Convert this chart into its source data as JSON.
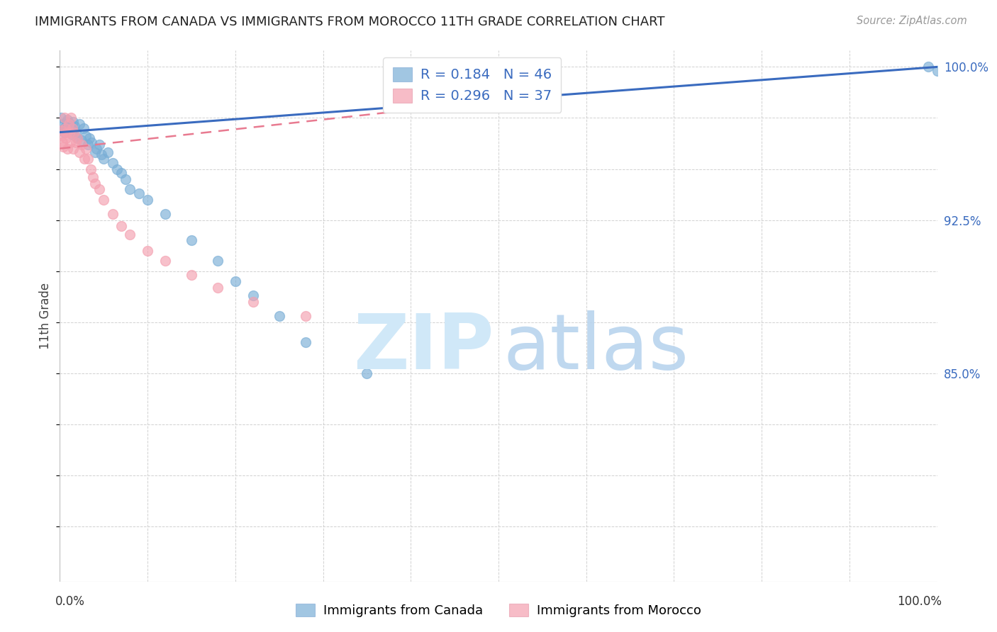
{
  "title": "IMMIGRANTS FROM CANADA VS IMMIGRANTS FROM MOROCCO 11TH GRADE CORRELATION CHART",
  "source": "Source: ZipAtlas.com",
  "ylabel": "11th Grade",
  "background_color": "#ffffff",
  "canada_color": "#7aaed6",
  "morocco_color": "#f4a0b0",
  "canada_line_color": "#3a6bbf",
  "morocco_line_color": "#e87a90",
  "canada_R": 0.184,
  "canada_N": 46,
  "morocco_R": 0.296,
  "morocco_N": 37,
  "legend_color": "#3a6bbf",
  "watermark_zip_color": "#d0e8f8",
  "watermark_atlas_color": "#b8d4ee",
  "grid_color": "#cccccc",
  "xlim": [
    0.0,
    1.0
  ],
  "ylim": [
    0.748,
    1.008
  ],
  "ytick_vals": [
    0.775,
    0.8,
    0.825,
    0.85,
    0.875,
    0.9,
    0.925,
    0.95,
    0.975,
    1.0
  ],
  "ytick_labels_right": [
    "",
    "",
    "",
    "85.0%",
    "",
    "",
    "92.5%",
    "",
    "",
    "100.0%"
  ],
  "canada_x": [
    0.001,
    0.003,
    0.005,
    0.005,
    0.007,
    0.008,
    0.009,
    0.01,
    0.012,
    0.013,
    0.014,
    0.015,
    0.016,
    0.017,
    0.018,
    0.02,
    0.022,
    0.025,
    0.027,
    0.03,
    0.032,
    0.034,
    0.036,
    0.04,
    0.042,
    0.045,
    0.047,
    0.05,
    0.055,
    0.06,
    0.065,
    0.07,
    0.075,
    0.08,
    0.09,
    0.1,
    0.12,
    0.15,
    0.18,
    0.2,
    0.22,
    0.25,
    0.28,
    0.35,
    0.99,
    1.0
  ],
  "canada_y": [
    0.975,
    0.972,
    0.97,
    0.968,
    0.971,
    0.973,
    0.974,
    0.969,
    0.972,
    0.97,
    0.967,
    0.973,
    0.969,
    0.971,
    0.968,
    0.965,
    0.972,
    0.964,
    0.97,
    0.966,
    0.962,
    0.965,
    0.963,
    0.958,
    0.96,
    0.962,
    0.957,
    0.955,
    0.958,
    0.953,
    0.95,
    0.948,
    0.945,
    0.94,
    0.938,
    0.935,
    0.928,
    0.915,
    0.905,
    0.895,
    0.888,
    0.878,
    0.865,
    0.85,
    1.0,
    0.998
  ],
  "morocco_x": [
    0.001,
    0.002,
    0.003,
    0.004,
    0.005,
    0.006,
    0.007,
    0.008,
    0.009,
    0.01,
    0.011,
    0.012,
    0.013,
    0.014,
    0.015,
    0.016,
    0.018,
    0.02,
    0.022,
    0.025,
    0.028,
    0.03,
    0.032,
    0.035,
    0.038,
    0.04,
    0.045,
    0.05,
    0.06,
    0.07,
    0.08,
    0.1,
    0.12,
    0.15,
    0.18,
    0.22,
    0.28
  ],
  "morocco_y": [
    0.969,
    0.966,
    0.963,
    0.961,
    0.975,
    0.97,
    0.965,
    0.968,
    0.96,
    0.972,
    0.968,
    0.963,
    0.975,
    0.97,
    0.96,
    0.968,
    0.963,
    0.965,
    0.958,
    0.962,
    0.955,
    0.96,
    0.955,
    0.95,
    0.946,
    0.943,
    0.94,
    0.935,
    0.928,
    0.922,
    0.918,
    0.91,
    0.905,
    0.898,
    0.892,
    0.885,
    0.878
  ]
}
